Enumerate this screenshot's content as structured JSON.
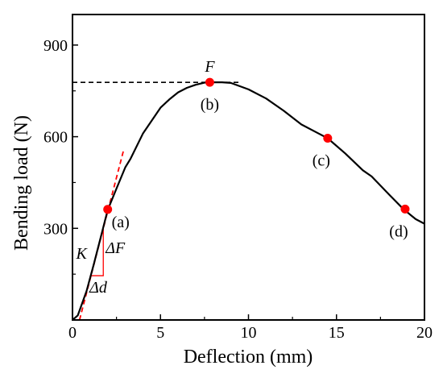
{
  "chart_data": {
    "type": "line",
    "xlabel": "Deflection (mm)",
    "ylabel": "Bending load (N)",
    "xlim": [
      0,
      20
    ],
    "ylim": [
      0,
      1000
    ],
    "x_ticks": [
      0,
      5,
      10,
      15,
      20
    ],
    "y_ticks": [
      300,
      600,
      900
    ],
    "x_tick_labels": [
      "0",
      "5",
      "10",
      "15",
      "20"
    ],
    "y_tick_labels": [
      "300",
      "600",
      "900"
    ],
    "grid": false,
    "series": [
      {
        "color": "#000000",
        "x": [
          0,
          0.3,
          0.8,
          1.2,
          1.6,
          2.0,
          2.5,
          3.0,
          3.3,
          4.0,
          5.0,
          5.5,
          6.0,
          6.5,
          7.0,
          7.5,
          7.8,
          8.5,
          9.0,
          10.0,
          11.0,
          12.0,
          13.0,
          14.0,
          14.5,
          15.5,
          16.5,
          17.0,
          18.0,
          18.8,
          19.5,
          20.0
        ],
        "y": [
          0,
          15,
          95,
          180,
          270,
          360,
          430,
          500,
          528,
          610,
          695,
          722,
          745,
          760,
          770,
          777,
          778,
          778,
          776,
          755,
          725,
          685,
          640,
          610,
          595,
          545,
          490,
          470,
          410,
          363,
          330,
          315
        ]
      }
    ],
    "markers": [
      {
        "label": "(a)",
        "x": 2.0,
        "y": 362,
        "color": "#ff0000"
      },
      {
        "label": "(b)",
        "x": 7.8,
        "y": 778,
        "color": "#ff0000"
      },
      {
        "label": "(c)",
        "x": 14.5,
        "y": 595,
        "color": "#ff0000"
      },
      {
        "label": "(d)",
        "x": 18.9,
        "y": 363,
        "color": "#ff0000"
      }
    ],
    "reference_lines": {
      "max_load": {
        "label": "F",
        "y": 778,
        "x_from": 0,
        "x_to": 9.5,
        "color": "#000000",
        "style": "dashed"
      },
      "slope": {
        "x": [
          0.4,
          2.9
        ],
        "y": [
          0,
          555
        ],
        "color": "#ff0000",
        "style": "dashed"
      }
    },
    "slope_triangle": {
      "x": [
        1.0,
        1.75
      ],
      "y": [
        145,
        298
      ],
      "labels": {
        "k": "K",
        "dF": "ΔF",
        "dd": "Δd"
      },
      "color": "#ff0000"
    }
  }
}
